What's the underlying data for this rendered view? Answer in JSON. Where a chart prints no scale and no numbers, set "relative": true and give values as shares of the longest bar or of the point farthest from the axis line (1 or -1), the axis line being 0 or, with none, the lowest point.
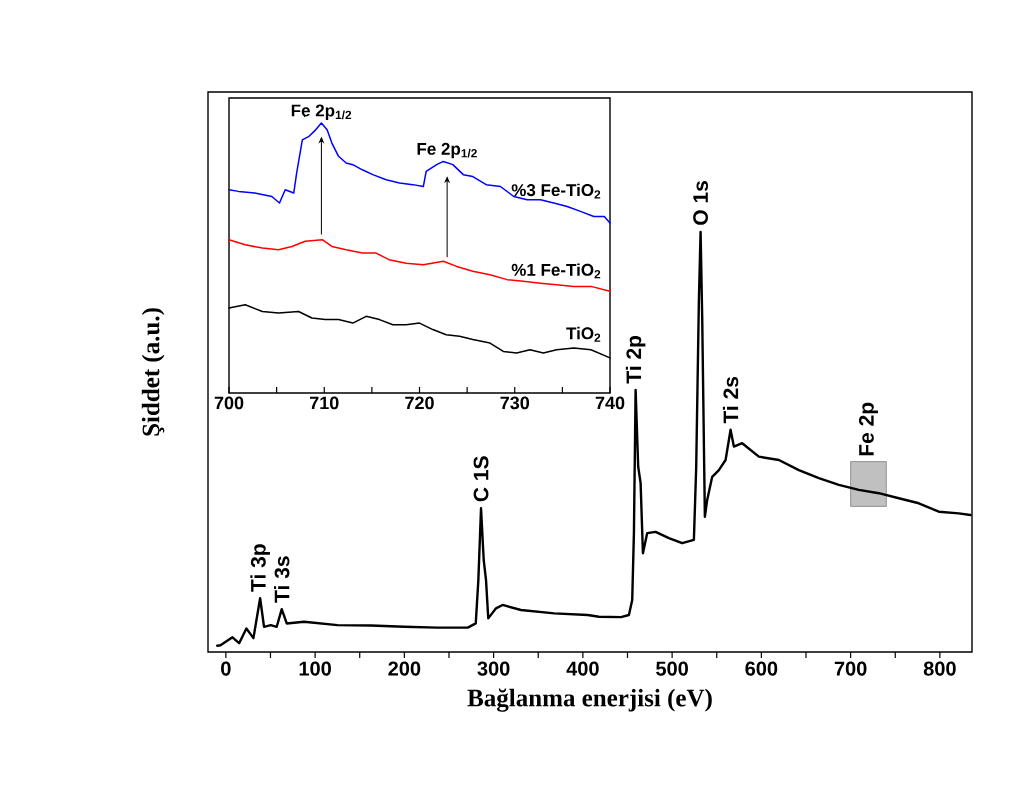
{
  "chart_data": [
    {
      "type": "line",
      "relative": true,
      "xlabel": "Bağlanma enerjisi (eV)",
      "ylabel": "Şiddet (a.u.)",
      "xlim": [
        -20,
        836
      ],
      "xticks": [
        0,
        {
          "value": 50,
          "label": null
        },
        100,
        {
          "value": 150,
          "label": null
        },
        200,
        {
          "value": 250,
          "label": null
        },
        300,
        {
          "value": 350,
          "label": null
        },
        400,
        {
          "value": 450,
          "label": null
        },
        500,
        {
          "value": 550,
          "label": null
        },
        600,
        {
          "value": 650,
          "label": null
        },
        700,
        {
          "value": 750,
          "label": null
        },
        800
      ],
      "bands": [
        {
          "axis": "x",
          "from": 700,
          "to": 740,
          "color": "#c0c0c0"
        }
      ],
      "annotations": [
        {
          "text": "Ti 3p",
          "x": 38.4,
          "y": 0.128
        },
        {
          "text": "Ti 3s",
          "x": 62.6,
          "y": 0.102
        },
        {
          "text": "C 1S",
          "x": 285.9,
          "y": 0.342
        },
        {
          "text": "Ti 2p",
          "x": 459.1,
          "y": 0.624
        },
        {
          "text": "O 1s",
          "x": 531.9,
          "y": 1.0
        },
        {
          "text": "Ti 2s",
          "x": 565.5,
          "y": 0.529
        },
        {
          "text": "Fe 2p",
          "x": 720,
          "y": 0.45
        }
      ],
      "series": [
        {
          "color": "#000000",
          "x": [
            -9.7,
            -6,
            7.4,
            14.9,
            23,
            30.9,
            38.4,
            42.8,
            50.3,
            57,
            62.6,
            68.2,
            87.6,
            125,
            162.5,
            199.8,
            237,
            271,
            280,
            282.9,
            285.9,
            288.9,
            291.5,
            294,
            302.7,
            310,
            330.6,
            368,
            405.4,
            418,
            442.7,
            451.6,
            455.3,
            457.2,
            459.1,
            462,
            464.7,
            467.3,
            472.1,
            481.5,
            496.4,
            511.3,
            524.4,
            527,
            530,
            531.9,
            533.7,
            536.7,
            539.3,
            544.9,
            552.4,
            559.9,
            565.5,
            569.2,
            578.5,
            597.2,
            619.6,
            642,
            664.4,
            686.8,
            709.2,
            731.6,
            754,
            776.4,
            798.8,
            821.2,
            834.3
          ],
          "values": [
            0.015,
            0.016,
            0.035,
            0.021,
            0.056,
            0.033,
            0.128,
            0.06,
            0.064,
            0.06,
            0.102,
            0.068,
            0.072,
            0.064,
            0.063,
            0.06,
            0.058,
            0.058,
            0.068,
            0.171,
            0.342,
            0.219,
            0.171,
            0.08,
            0.104,
            0.112,
            0.1,
            0.092,
            0.088,
            0.084,
            0.083,
            0.088,
            0.124,
            0.283,
            0.624,
            0.441,
            0.402,
            0.235,
            0.283,
            0.286,
            0.271,
            0.259,
            0.267,
            0.441,
            0.838,
            1.0,
            0.798,
            0.322,
            0.362,
            0.417,
            0.433,
            0.457,
            0.529,
            0.489,
            0.497,
            0.465,
            0.457,
            0.433,
            0.414,
            0.398,
            0.386,
            0.378,
            0.366,
            0.354,
            0.334,
            0.33,
            0.326
          ]
        }
      ]
    },
    {
      "type": "line",
      "relative": true,
      "xlim": [
        700,
        740
      ],
      "xticks": [
        700,
        {
          "value": 705,
          "label": null
        },
        710,
        {
          "value": 715,
          "label": null
        },
        720,
        {
          "value": 725,
          "label": null
        },
        730,
        {
          "value": 735,
          "label": null
        },
        740
      ],
      "annotations": [
        {
          "text": "Fe 2p$_{1/2}$",
          "x": 709.7,
          "y": 1.0
        },
        {
          "text": "Fe 2p$_{1/2}$",
          "x": 722.9,
          "y": 0.858
        }
      ],
      "series": [
        {
          "name": "%3 Fe-TiO$_{2}$",
          "color": "#0000ff",
          "x": [
            700,
            701.0,
            702.7,
            704.5,
            705.3,
            705.9,
            706.8,
            707.1,
            707.7,
            708.4,
            709.1,
            709.7,
            710.3,
            710.8,
            711.5,
            712.3,
            713.0,
            714.0,
            715.1,
            716.5,
            717.9,
            719.3,
            720.4,
            720.7,
            721.8,
            722.5,
            723.5,
            724.6,
            725.6,
            727.0,
            728.5,
            729.9,
            731.3,
            732.7,
            734.1,
            735.5,
            736.9,
            738.3,
            739.4,
            740
          ],
          "values": [
            0.753,
            0.747,
            0.741,
            0.728,
            0.704,
            0.753,
            0.741,
            0.815,
            0.938,
            0.951,
            0.975,
            1.0,
            0.975,
            0.926,
            0.877,
            0.852,
            0.846,
            0.827,
            0.809,
            0.79,
            0.778,
            0.772,
            0.765,
            0.821,
            0.846,
            0.858,
            0.846,
            0.809,
            0.802,
            0.772,
            0.765,
            0.728,
            0.716,
            0.716,
            0.704,
            0.691,
            0.673,
            0.654,
            0.654,
            0.63
          ]
        },
        {
          "name": "%1 Fe-TiO$_{2}$",
          "color": "#ff0000",
          "x": [
            700,
            701.7,
            703.5,
            705.2,
            706.6,
            708.0,
            709.8,
            710.8,
            712.3,
            714.0,
            715.4,
            716.8,
            718.6,
            720.4,
            722.5,
            723.9,
            725.6,
            727.4,
            729.2,
            730.9,
            732.7,
            734.4,
            736.2,
            738.0,
            740
          ],
          "values": [
            0.568,
            0.549,
            0.537,
            0.531,
            0.543,
            0.562,
            0.568,
            0.543,
            0.531,
            0.519,
            0.519,
            0.494,
            0.481,
            0.475,
            0.488,
            0.469,
            0.451,
            0.438,
            0.42,
            0.414,
            0.407,
            0.401,
            0.395,
            0.395,
            0.377
          ]
        },
        {
          "name": "TiO$_{2}$",
          "color": "#000000",
          "x": [
            700,
            701.7,
            703.5,
            705.2,
            707.3,
            708.7,
            710.1,
            711.5,
            713.0,
            714.4,
            715.8,
            717.2,
            718.6,
            720.0,
            721.4,
            722.8,
            724.2,
            725.6,
            727.4,
            728.8,
            730.2,
            731.6,
            733.0,
            734.4,
            736.2,
            738.0,
            740
          ],
          "values": [
            0.315,
            0.327,
            0.302,
            0.296,
            0.302,
            0.278,
            0.272,
            0.272,
            0.259,
            0.284,
            0.272,
            0.253,
            0.253,
            0.259,
            0.235,
            0.216,
            0.21,
            0.198,
            0.185,
            0.154,
            0.148,
            0.16,
            0.148,
            0.16,
            0.167,
            0.16,
            0.13
          ]
        }
      ]
    }
  ]
}
